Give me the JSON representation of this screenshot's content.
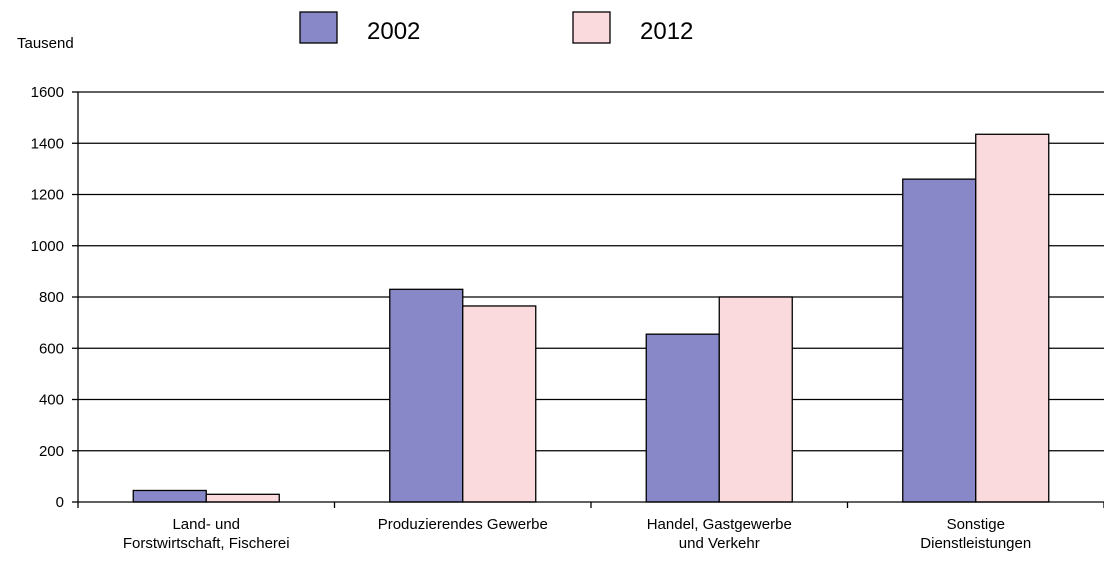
{
  "chart_data": {
    "type": "bar",
    "ylabel": "Tausend",
    "ylim": [
      0,
      1600
    ],
    "yticks": [
      0,
      200,
      400,
      600,
      800,
      1000,
      1200,
      1400,
      1600
    ],
    "grid": true,
    "legend_position": "top",
    "categories": [
      [
        "Land- und",
        "Forstwirtschaft, Fischerei"
      ],
      [
        "Produzierendes Gewerbe"
      ],
      [
        "Handel, Gastgewerbe",
        "und Verkehr"
      ],
      [
        "Sonstige",
        "Dienstleistungen"
      ]
    ],
    "series": [
      {
        "name": "2002",
        "color": "#8888c8",
        "values": [
          45,
          830,
          655,
          1260
        ]
      },
      {
        "name": "2012",
        "color": "#fadadd",
        "values": [
          30,
          765,
          800,
          1435
        ]
      }
    ]
  }
}
